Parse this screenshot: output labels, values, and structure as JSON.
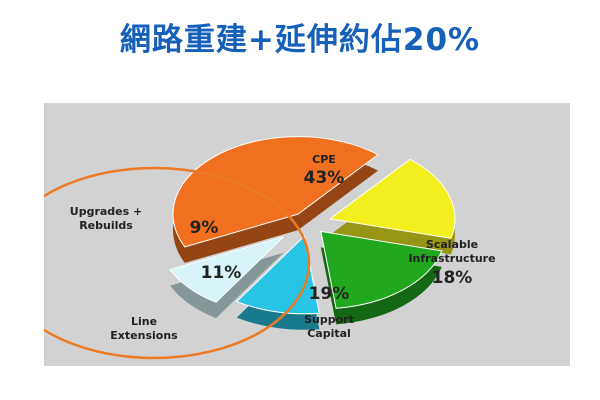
{
  "title": "網路重建+延伸約佔20%",
  "chart_data": {
    "type": "pie",
    "title": "網路重建+延伸約佔20%",
    "slices": [
      {
        "label": "CPE",
        "value": 43,
        "display": "43%",
        "color": "#f07020"
      },
      {
        "label": "Scalable Infrastructure",
        "value": 18,
        "display": "18%",
        "color": "#f4f020"
      },
      {
        "label": "Support Capital",
        "value": 19,
        "display": "19%",
        "color": "#22a81e"
      },
      {
        "label": "Line Extensions",
        "value": 11,
        "display": "11%",
        "color": "#28c4e4"
      },
      {
        "label": "Upgrades + Rebuilds",
        "value": 9,
        "display": "9%",
        "color": "#d8f4f8"
      }
    ],
    "legend": "none",
    "highlight": {
      "shape": "ellipse",
      "color": "#ec7a22",
      "slices": [
        "Line Extensions",
        "Upgrades + Rebuilds"
      ]
    }
  }
}
